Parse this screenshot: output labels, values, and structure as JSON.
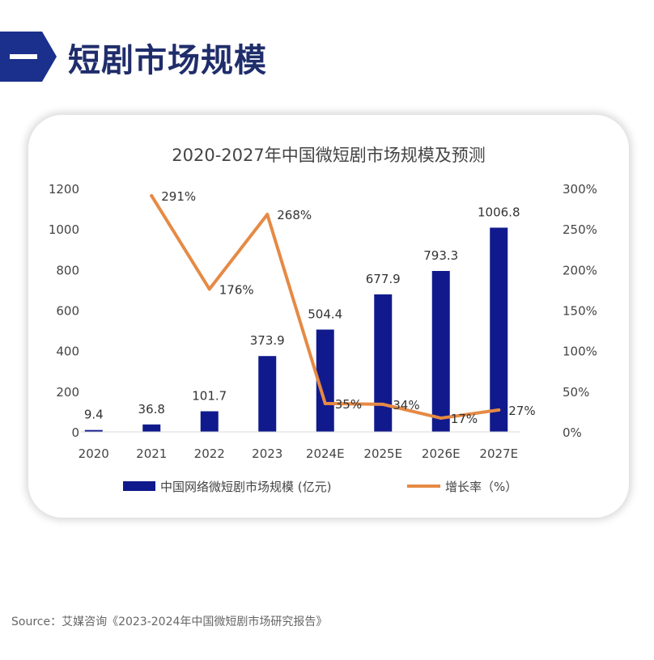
{
  "header": {
    "badge_glyph": "一",
    "title": "短剧市场规模",
    "badge_color": "#1b2f8c"
  },
  "chart_data": {
    "type": "bar",
    "title": "2020-2027年中国微短剧市场规模及预测",
    "categories": [
      "2020",
      "2021",
      "2022",
      "2023",
      "2024E",
      "2025E",
      "2026E",
      "2027E"
    ],
    "bar_series": {
      "name": "中国网络微短剧市场规模 (亿元)",
      "values": [
        9.4,
        36.8,
        101.7,
        373.9,
        504.4,
        677.9,
        793.3,
        1006.8
      ],
      "labels": [
        "9.4",
        "36.8",
        "101.7",
        "373.9",
        "504.4",
        "677.9",
        "793.3",
        "1006.8"
      ],
      "color": "#111a8c"
    },
    "line_series": {
      "name": "增长率（%）",
      "values": [
        null,
        291,
        176,
        268,
        35,
        34,
        17,
        27
      ],
      "labels": [
        "",
        "291%",
        "176%",
        "268%",
        "35%",
        "34%",
        "17%",
        "27%"
      ],
      "color": "#e58a45"
    },
    "y_left": {
      "ylim": [
        0,
        1200
      ],
      "ticks": [
        "0",
        "200",
        "400",
        "600",
        "800",
        "1000",
        "1200"
      ]
    },
    "y_right": {
      "ylim": [
        0,
        300
      ],
      "ticks": [
        "0%",
        "50%",
        "100%",
        "150%",
        "200%",
        "250%",
        "300%"
      ]
    },
    "grid": false,
    "legend": "bottom"
  },
  "source": "Source：艾媒咨询《2023-2024年中国微短剧市场研究报告》"
}
